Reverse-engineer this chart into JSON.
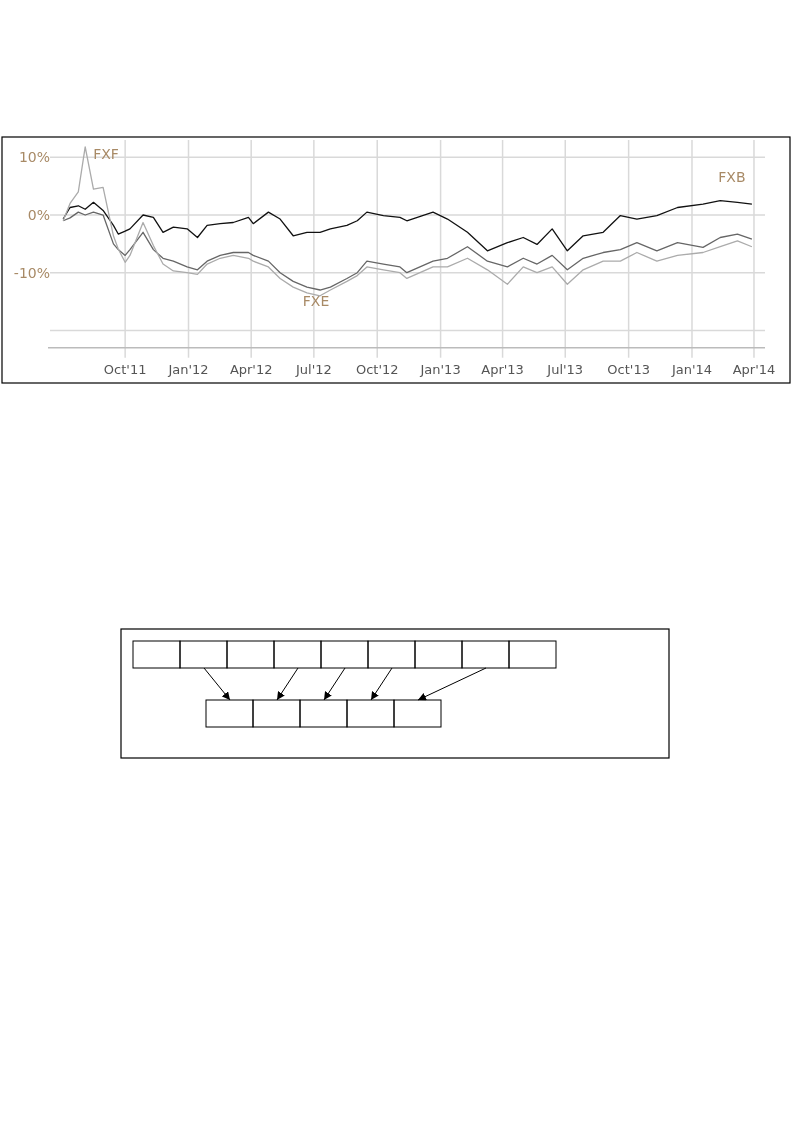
{
  "chart_data": {
    "type": "line",
    "xlim": [
      "2011-06-11",
      "2014-04-17"
    ],
    "xticks": [
      {
        "value": "2011-10-01",
        "label": "Oct'11"
      },
      {
        "value": "2012-01-01",
        "label": "Jan'12"
      },
      {
        "value": "2012-04-01",
        "label": "Apr'12"
      },
      {
        "value": "2012-07-01",
        "label": "Jul'12"
      },
      {
        "value": "2012-10-01",
        "label": "Oct'12"
      },
      {
        "value": "2013-01-01",
        "label": "Jan'13"
      },
      {
        "value": "2013-04-01",
        "label": "Apr'13"
      },
      {
        "value": "2013-07-01",
        "label": "Jul'13"
      },
      {
        "value": "2013-10-01",
        "label": "Oct'13"
      },
      {
        "value": "2014-01-01",
        "label": "Jan'14"
      },
      {
        "value": "2014-04-01",
        "label": "Apr'14"
      }
    ],
    "ylim": [
      -23,
      13
    ],
    "yticks": [
      {
        "value": 10,
        "label": "10%"
      },
      {
        "value": 0,
        "label": "0%"
      },
      {
        "value": -10,
        "label": "-10%"
      },
      {
        "value": -20,
        "label": null
      }
    ],
    "grid": true,
    "line_style": "solid",
    "x": [
      "2011-07-03",
      "2011-07-13",
      "2011-07-25",
      "2011-08-04",
      "2011-08-16",
      "2011-08-30",
      "2011-09-14",
      "2011-09-21",
      "2011-10-01",
      "2011-10-08",
      "2011-10-27",
      "2011-11-11",
      "2011-11-25",
      "2011-12-10",
      "2011-12-30",
      "2012-01-14",
      "2012-01-28",
      "2012-02-16",
      "2012-03-06",
      "2012-03-28",
      "2012-04-04",
      "2012-04-26",
      "2012-05-13",
      "2012-06-01",
      "2012-06-21",
      "2012-07-10",
      "2012-07-25",
      "2012-08-18",
      "2012-09-02",
      "2012-09-16",
      "2012-10-10",
      "2012-11-03",
      "2012-11-13",
      "2012-12-21",
      "2013-01-11",
      "2013-02-09",
      "2013-03-10",
      "2013-04-08",
      "2013-05-01",
      "2013-05-21",
      "2013-06-12",
      "2013-07-04",
      "2013-07-27",
      "2013-08-25",
      "2013-09-19",
      "2013-10-13",
      "2013-11-11",
      "2013-12-11",
      "2014-01-17",
      "2014-02-11",
      "2014-03-08",
      "2014-03-29"
    ],
    "series": [
      {
        "name": "FXB",
        "color": "#111111",
        "values": [
          -0.7,
          1.3,
          1.6,
          1.0,
          2.2,
          0.8,
          -1.8,
          -3.3,
          -2.8,
          -2.4,
          0,
          -0.4,
          -3.0,
          -2.1,
          -2.4,
          -3.9,
          -1.8,
          -1.5,
          -1.3,
          -0.4,
          -1.5,
          0.5,
          -0.7,
          -3.6,
          -3.0,
          -3.0,
          -2.4,
          -1.8,
          -1.0,
          0.5,
          -0.1,
          -0.4,
          -1.0,
          0.5,
          -0.7,
          -3.0,
          -6.2,
          -4.8,
          -3.9,
          -5.1,
          -2.4,
          -6.2,
          -3.6,
          -3.0,
          -0.1,
          -0.7,
          -0.1,
          1.3,
          1.9,
          2.5,
          2.2,
          1.9
        ]
      },
      {
        "name": "FXE",
        "color": "#666666",
        "values": [
          -1,
          -0.5,
          0.5,
          0,
          0.5,
          0,
          -5,
          -6,
          -7,
          -6,
          -3,
          -6,
          -7.5,
          -8,
          -9,
          -9.5,
          -8,
          -7,
          -6.5,
          -6.5,
          -7,
          -8,
          -10,
          -11.5,
          -12.5,
          -13,
          -12.5,
          -11,
          -10,
          -8,
          -8.5,
          -9,
          -10,
          -8,
          -7.5,
          -5.5,
          -8,
          -9,
          -7.5,
          -8.5,
          -7,
          -9.5,
          -7.5,
          -6.5,
          -6,
          -4.8,
          -6.2,
          -4.8,
          -5.6,
          -3.9,
          -3.3,
          -4.2
        ]
      },
      {
        "name": "FXF",
        "color": "#ababab",
        "values": [
          -1,
          2,
          4,
          11.8,
          4.5,
          4.8,
          -3.6,
          -5.9,
          -8.2,
          -7,
          -1.3,
          -5.3,
          -8.5,
          -9.7,
          -10,
          -10.3,
          -8.5,
          -7.5,
          -7,
          -7.5,
          -8,
          -9,
          -11,
          -12.5,
          -13.5,
          -14,
          -13,
          -11.5,
          -10.5,
          -9,
          -9.5,
          -10,
          -11,
          -9,
          -9,
          -7.5,
          -9.5,
          -12,
          -9,
          -10,
          -9,
          -12,
          -9.5,
          -8,
          -8,
          -6.5,
          -8,
          -7,
          -6.5,
          -5.5,
          -4.5,
          -5.5
        ]
      }
    ]
  }
}
